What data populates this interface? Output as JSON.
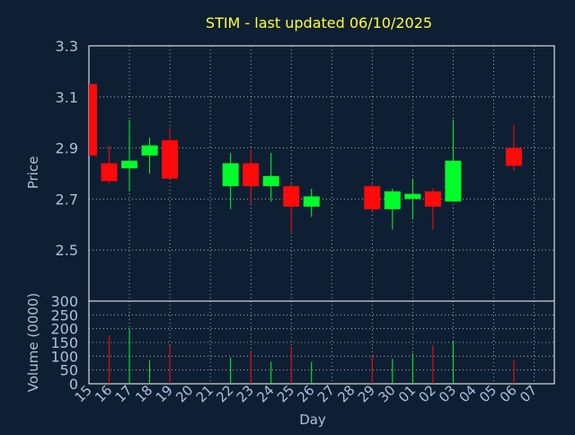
{
  "colors": {
    "background": "#0f1f33",
    "axis_text": "#a9c2dd",
    "title": "#ffff33",
    "grid": "#ffffff",
    "up": "#00ff2a",
    "down": "#ff0a0a",
    "frame": "#ffffff"
  },
  "chart_data": {
    "type": "candlestick",
    "title": "STIM - last updated 06/10/2025",
    "xlabel": "Day",
    "x_ticks": [
      "15",
      "16",
      "17",
      "18",
      "19",
      "20",
      "21",
      "22",
      "23",
      "24",
      "25",
      "26",
      "27",
      "28",
      "29",
      "30",
      "01",
      "02",
      "03",
      "04",
      "05",
      "06",
      "07"
    ],
    "price_panel": {
      "ylabel": "Price",
      "ylim": [
        2.3,
        3.3
      ],
      "yticks": [
        "3.3",
        "3.1",
        "2.9",
        "2.7",
        "2.5"
      ],
      "yticks_values": [
        3.3,
        3.1,
        2.9,
        2.7,
        2.5
      ],
      "grid": true
    },
    "volume_panel": {
      "ylabel": "Volume (0000)",
      "ylim": [
        0,
        300
      ],
      "yticks": [
        "300",
        "250",
        "200",
        "150",
        "100",
        "50",
        "0"
      ],
      "yticks_values": [
        300,
        250,
        200,
        150,
        100,
        50,
        0
      ],
      "grid": true
    },
    "candles": [
      {
        "day": "15",
        "open": 3.15,
        "high": 3.15,
        "low": 2.87,
        "close": 2.87,
        "volume": 0
      },
      {
        "day": "16",
        "open": 2.84,
        "high": 2.91,
        "low": 2.76,
        "close": 2.77,
        "volume": 175
      },
      {
        "day": "17",
        "open": 2.82,
        "high": 3.01,
        "low": 2.73,
        "close": 2.85,
        "volume": 200
      },
      {
        "day": "18",
        "open": 2.87,
        "high": 2.94,
        "low": 2.8,
        "close": 2.91,
        "volume": 85
      },
      {
        "day": "19",
        "open": 2.93,
        "high": 2.98,
        "low": 2.78,
        "close": 2.78,
        "volume": 140
      },
      {
        "day": "22",
        "open": 2.75,
        "high": 2.88,
        "low": 2.66,
        "close": 2.84,
        "volume": 95
      },
      {
        "day": "23",
        "open": 2.84,
        "high": 2.89,
        "low": 2.68,
        "close": 2.75,
        "volume": 115
      },
      {
        "day": "24",
        "open": 2.75,
        "high": 2.88,
        "low": 2.69,
        "close": 2.79,
        "volume": 80
      },
      {
        "day": "25",
        "open": 2.75,
        "high": 2.76,
        "low": 2.57,
        "close": 2.67,
        "volume": 135
      },
      {
        "day": "26",
        "open": 2.67,
        "high": 2.74,
        "low": 2.63,
        "close": 2.71,
        "volume": 80
      },
      {
        "day": "29",
        "open": 2.75,
        "high": 2.76,
        "low": 2.65,
        "close": 2.66,
        "volume": 105
      },
      {
        "day": "30",
        "open": 2.66,
        "high": 2.74,
        "low": 2.58,
        "close": 2.73,
        "volume": 90
      },
      {
        "day": "01",
        "open": 2.7,
        "high": 2.78,
        "low": 2.62,
        "close": 2.72,
        "volume": 110
      },
      {
        "day": "02",
        "open": 2.73,
        "high": 2.74,
        "low": 2.58,
        "close": 2.67,
        "volume": 140
      },
      {
        "day": "03",
        "open": 2.69,
        "high": 3.01,
        "low": 2.69,
        "close": 2.85,
        "volume": 155
      },
      {
        "day": "06",
        "open": 2.9,
        "high": 2.99,
        "low": 2.81,
        "close": 2.83,
        "volume": 85
      }
    ]
  }
}
